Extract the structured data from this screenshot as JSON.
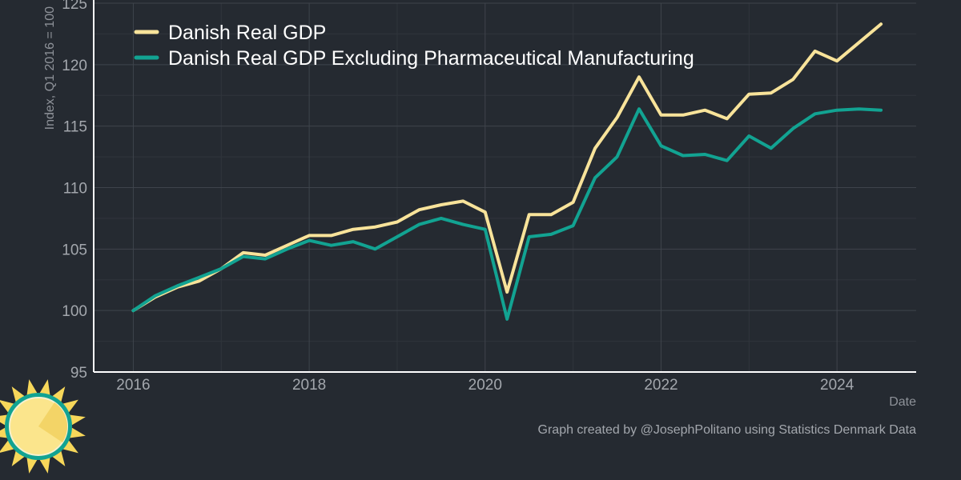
{
  "colors": {
    "background": "#252a31",
    "gdp_line": "#f8e39a",
    "gdp_ex_pharma_line": "#12a392",
    "axis": "#ffffff",
    "grid": "#3f444c"
  },
  "caption": "Graph created by @JosephPolitano using Statistics Denmark Data",
  "logo_icon": "sun-icon",
  "chart_data": {
    "type": "line",
    "title": "",
    "xlabel": "Date",
    "ylabel": "Index, Q1 2016 = 100",
    "xlim": [
      2015.55,
      2024.9
    ],
    "ylim": [
      95,
      125
    ],
    "x_ticks": [
      2016,
      2018,
      2020,
      2022,
      2024
    ],
    "x_tick_labels": [
      "2016",
      "2018",
      "2020",
      "2022",
      "2024"
    ],
    "y_ticks": [
      95,
      100,
      105,
      110,
      115,
      120,
      125
    ],
    "y_tick_labels": [
      "95",
      "100",
      "105",
      "110",
      "115",
      "120",
      "125"
    ],
    "grid": true,
    "legend_position": "top-left",
    "x": [
      "2016 Q1",
      "2016 Q2",
      "2016 Q3",
      "2016 Q4",
      "2017 Q1",
      "2017 Q2",
      "2017 Q3",
      "2017 Q4",
      "2018 Q1",
      "2018 Q2",
      "2018 Q3",
      "2018 Q4",
      "2019 Q1",
      "2019 Q2",
      "2019 Q3",
      "2019 Q4",
      "2020 Q1",
      "2020 Q2",
      "2020 Q3",
      "2020 Q4",
      "2021 Q1",
      "2021 Q2",
      "2021 Q3",
      "2021 Q4",
      "2022 Q1",
      "2022 Q2",
      "2022 Q3",
      "2022 Q4",
      "2023 Q1",
      "2023 Q2",
      "2023 Q3",
      "2023 Q4",
      "2024 Q1",
      "2024 Q2",
      "2024 Q3"
    ],
    "series": [
      {
        "name": "Danish Real GDP",
        "color": "#f8e39a",
        "values": [
          100.0,
          101.1,
          101.9,
          102.4,
          103.4,
          104.7,
          104.5,
          105.3,
          106.1,
          106.1,
          106.6,
          106.8,
          107.2,
          108.2,
          108.6,
          108.9,
          108.0,
          101.5,
          107.8,
          107.8,
          108.8,
          113.2,
          115.7,
          119.0,
          115.9,
          115.9,
          116.3,
          115.6,
          117.6,
          117.7,
          118.8,
          121.1,
          120.3,
          121.8,
          123.3
        ]
      },
      {
        "name": "Danish Real GDP Excluding Pharmaceutical Manufacturing",
        "color": "#12a392",
        "values": [
          100.0,
          101.2,
          102.0,
          102.7,
          103.4,
          104.4,
          104.2,
          105.0,
          105.7,
          105.3,
          105.6,
          105.0,
          106.0,
          107.0,
          107.5,
          107.0,
          106.6,
          99.3,
          106.0,
          106.2,
          106.9,
          110.8,
          112.5,
          116.4,
          113.4,
          112.6,
          112.7,
          112.2,
          114.2,
          113.2,
          114.8,
          116.0,
          116.3,
          116.4,
          116.3
        ]
      }
    ]
  }
}
